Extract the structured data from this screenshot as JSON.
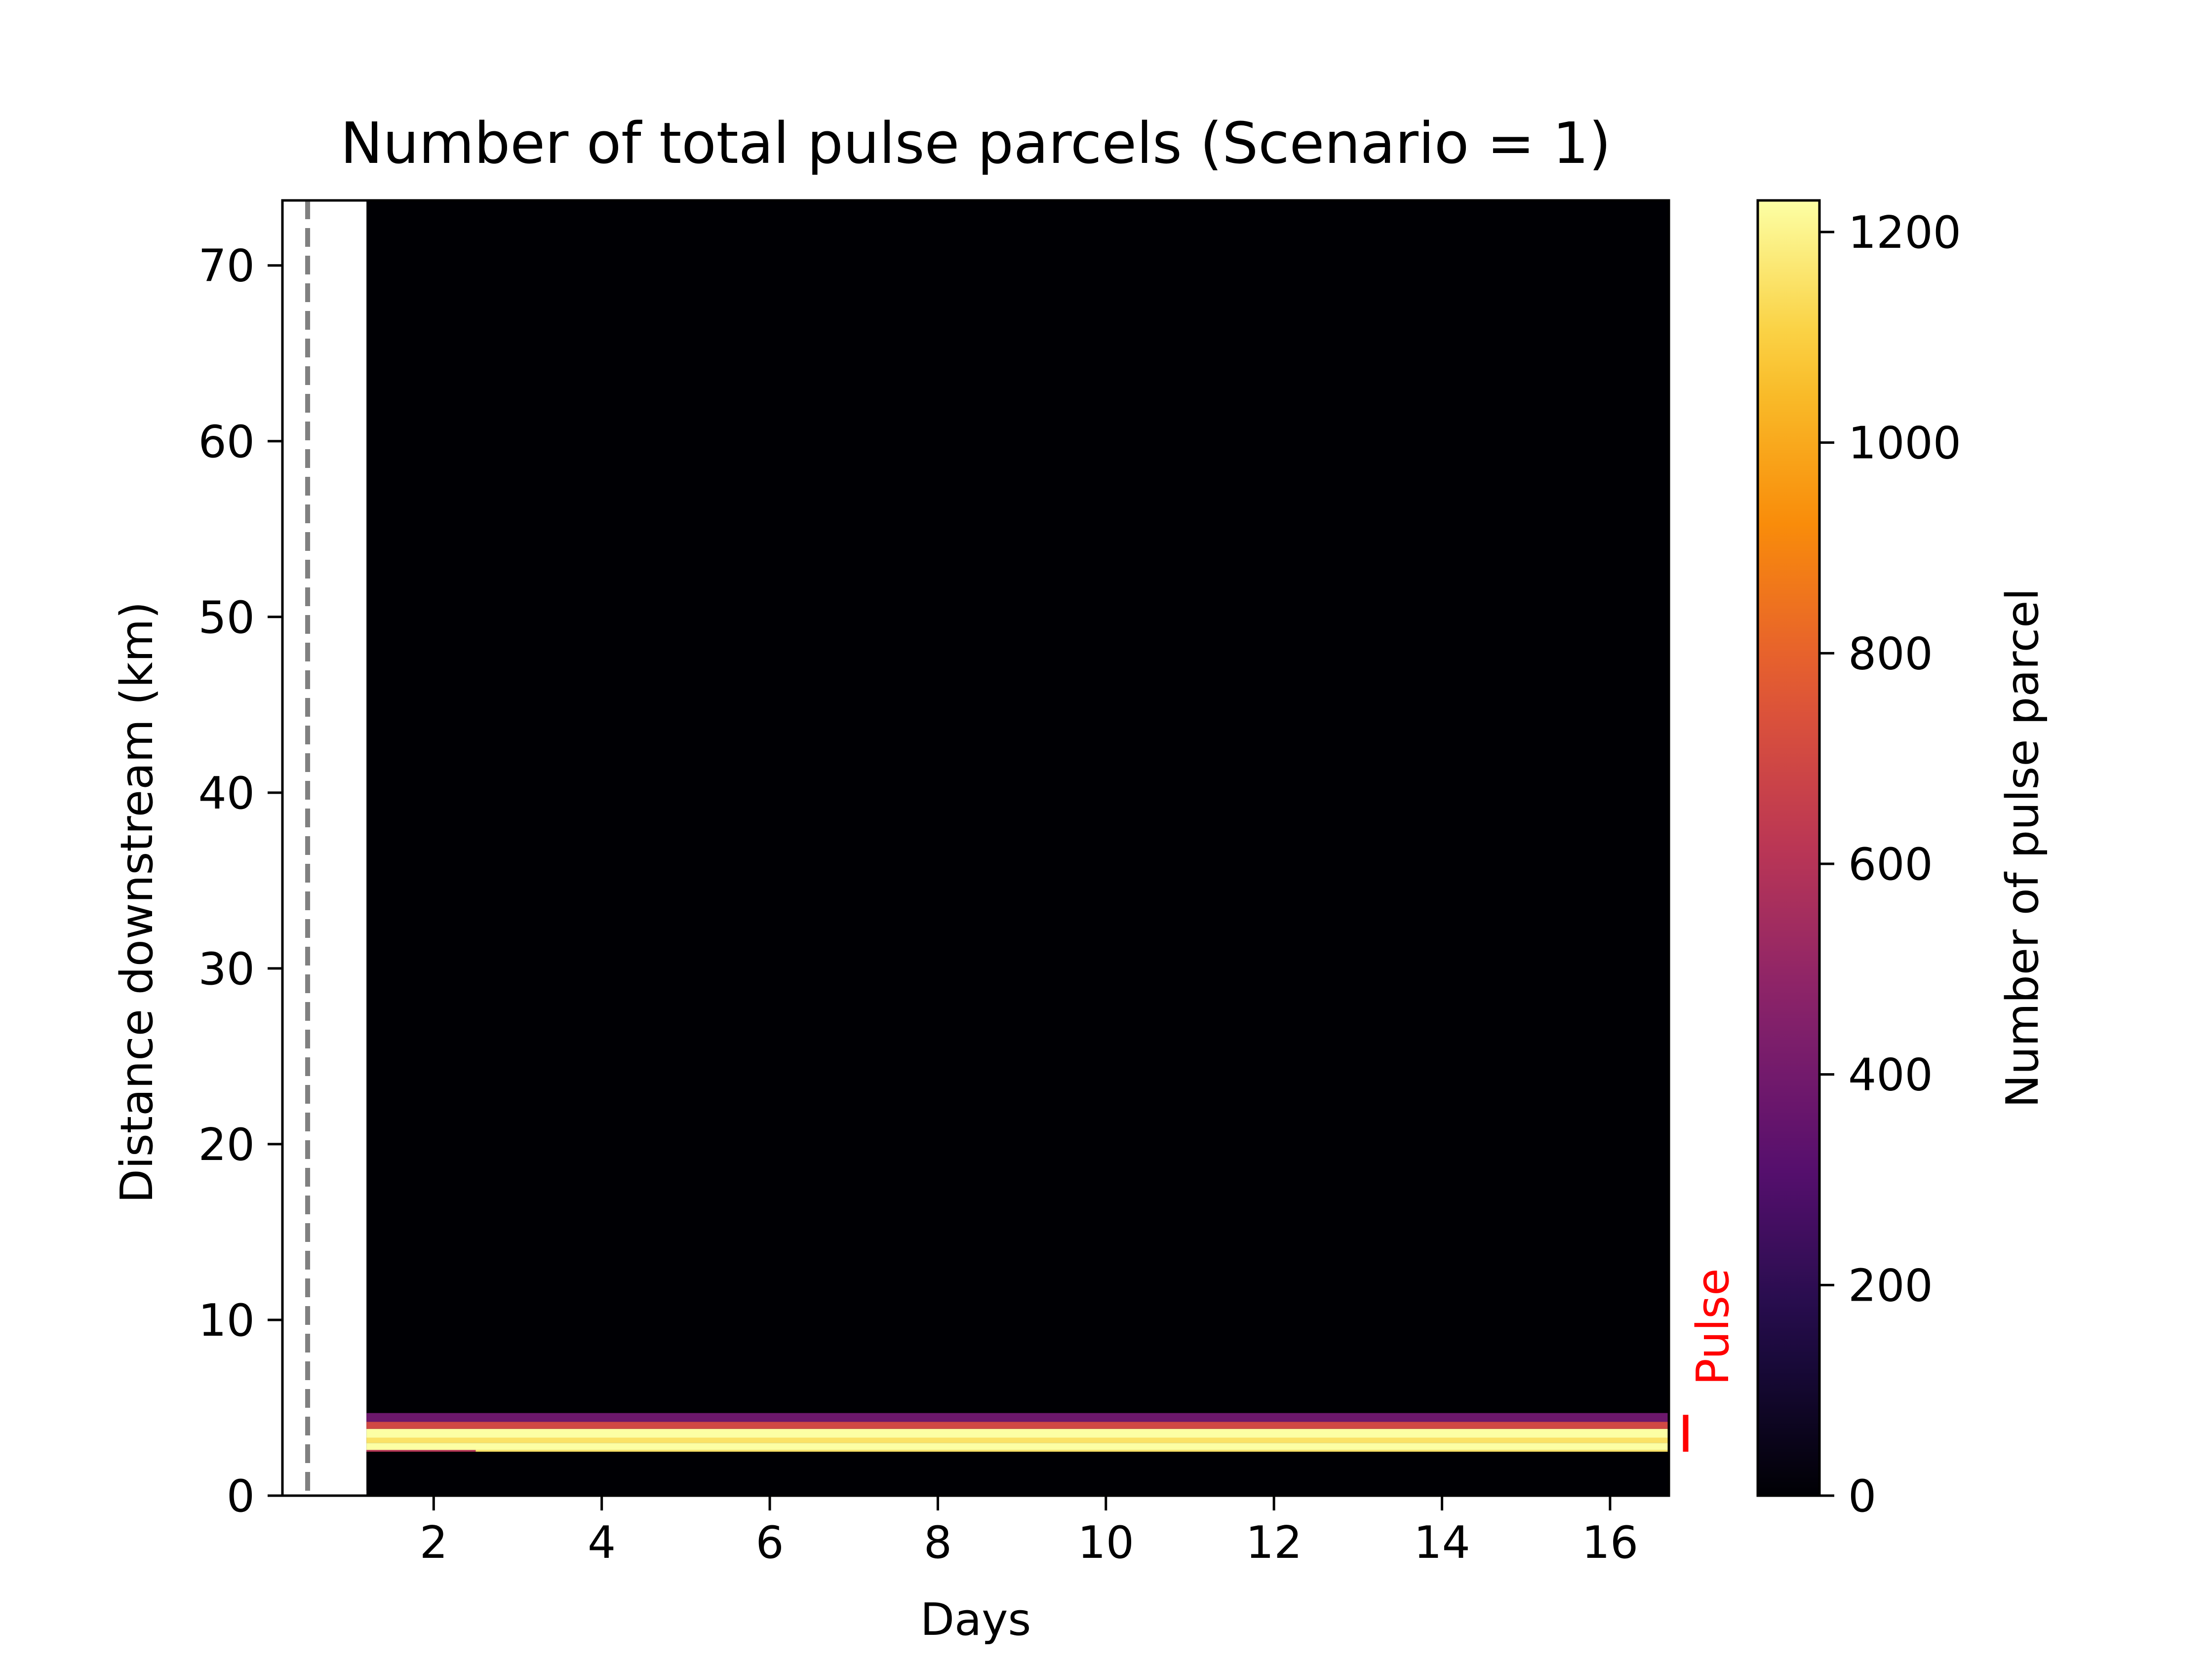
{
  "chart_data": {
    "type": "heatmap",
    "title": "Number of total pulse parcels (Scenario = 1)",
    "xlabel": "Days",
    "ylabel": "Distance downstream (km)",
    "xlim": [
      0.2,
      16.7
    ],
    "ylim": [
      0,
      73.7
    ],
    "data_x_range": [
      1.2,
      16.7
    ],
    "x_ticks": [
      2,
      4,
      6,
      8,
      10,
      12,
      14,
      16
    ],
    "y_ticks": [
      0,
      10,
      20,
      30,
      40,
      50,
      60,
      70
    ],
    "colormap": "inferno",
    "colorbar": {
      "label": "Number of pulse parcel",
      "range": [
        0,
        1230
      ],
      "ticks": [
        0,
        200,
        400,
        600,
        800,
        1000,
        1200
      ]
    },
    "vertical_line": {
      "x": 0.5,
      "style": "dashed",
      "color": "#808080"
    },
    "annotation": {
      "text": "Pulse",
      "color": "#ff0000",
      "y_range": [
        2.5,
        4.6
      ]
    },
    "background_value": 0,
    "bands": [
      {
        "y": [
          0.3,
          2.5
        ],
        "x": [
          1.2,
          16.7
        ],
        "value": 0
      },
      {
        "y": [
          2.5,
          2.6
        ],
        "x": [
          1.2,
          2.5
        ],
        "value": 600
      },
      {
        "y": [
          2.5,
          2.6
        ],
        "x": [
          2.5,
          16.7
        ],
        "value": 1150
      },
      {
        "y": [
          2.6,
          3.0
        ],
        "x": [
          1.2,
          16.7
        ],
        "value": 1230
      },
      {
        "y": [
          3.0,
          3.3
        ],
        "x": [
          1.2,
          16.7
        ],
        "value": 1150
      },
      {
        "y": [
          3.3,
          3.8
        ],
        "x": [
          1.2,
          16.7
        ],
        "value": 1230
      },
      {
        "y": [
          3.8,
          4.2
        ],
        "x": [
          1.2,
          16.7
        ],
        "value": 700
      },
      {
        "y": [
          4.2,
          4.7
        ],
        "x": [
          1.2,
          16.7
        ],
        "value": 380
      }
    ]
  }
}
